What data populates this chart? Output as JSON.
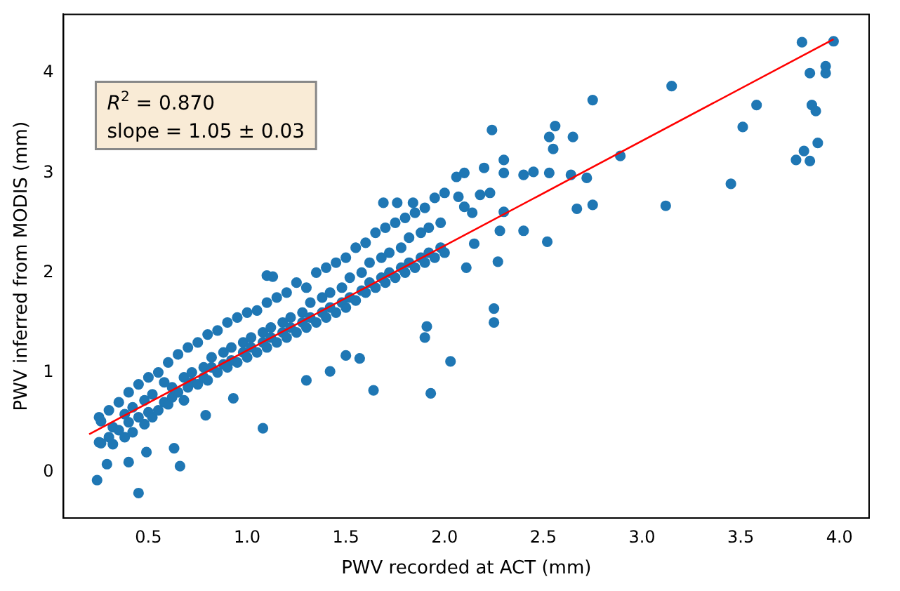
{
  "chart_data": {
    "type": "scatter",
    "xlabel": "PWV recorded at ACT (mm)",
    "ylabel": "PWV inferred from MODIS (mm)",
    "xlim": [
      0.07,
      4.15
    ],
    "ylim": [
      -0.46,
      4.59
    ],
    "xticks": [
      {
        "value": 0.5,
        "label": "0.5"
      },
      {
        "value": 1,
        "label": "1.0"
      },
      {
        "value": 1.5,
        "label": "1.5"
      },
      {
        "value": 2,
        "label": "2.0"
      },
      {
        "value": 2.5,
        "label": "2.5"
      },
      {
        "value": 3,
        "label": "3.0"
      },
      {
        "value": 3.5,
        "label": "3.5"
      },
      {
        "value": 4,
        "label": "4.0"
      }
    ],
    "yticks": [
      0,
      1,
      2,
      3,
      4
    ],
    "annotations": [
      "R$^{2}$ = 0.870",
      "slope = 1.05 ± 0.03"
    ],
    "series": [
      {
        "marker": "circle",
        "color": "#1f77b4",
        "x": [
          0.25,
          0.25,
          0.3,
          0.3,
          0.32,
          0.32,
          0.35,
          0.35,
          0.38,
          0.38,
          0.4,
          0.4,
          0.42,
          0.42,
          0.45,
          0.45,
          0.48,
          0.48,
          0.5,
          0.5,
          0.52,
          0.52,
          0.55,
          0.55,
          0.58,
          0.58,
          0.6,
          0.6,
          0.62,
          0.62,
          0.65,
          0.65,
          0.68,
          0.68,
          0.7,
          0.7,
          0.72,
          0.72,
          0.75,
          0.75,
          0.78,
          0.78,
          0.8,
          0.8,
          0.82,
          0.82,
          0.85,
          0.85,
          0.88,
          0.88,
          0.9,
          0.9,
          0.92,
          0.92,
          0.95,
          0.95,
          0.98,
          0.98,
          1.0,
          1.0,
          1.02,
          1.02,
          1.05,
          1.05,
          1.08,
          1.08,
          1.1,
          1.1,
          1.12,
          1.12,
          1.15,
          1.15,
          1.18,
          1.18,
          1.2,
          1.2,
          1.22,
          1.22,
          1.25,
          1.25,
          1.28,
          1.28,
          1.3,
          1.3,
          1.32,
          1.32,
          1.35,
          1.35,
          1.38,
          1.38,
          1.4,
          1.4,
          1.42,
          1.42,
          1.45,
          1.45,
          1.48,
          1.48,
          1.5,
          1.5,
          1.52,
          1.52,
          1.55,
          1.55,
          1.58,
          1.58,
          1.6,
          1.6,
          1.62,
          1.62,
          1.65,
          1.65,
          1.68,
          1.68,
          1.7,
          1.7,
          1.72,
          1.72,
          1.75,
          1.75,
          1.78,
          1.78,
          1.8,
          1.8,
          1.82,
          1.82,
          1.85,
          1.85,
          1.88,
          1.88,
          1.9,
          1.9,
          1.92,
          1.92,
          1.95,
          1.95,
          1.98,
          1.98,
          2.0,
          2.0,
          0.45,
          0.24,
          0.66,
          0.29,
          1.08,
          1.64,
          1.93,
          2.03,
          1.9,
          1.91,
          1.57,
          1.5,
          1.42,
          1.3,
          1.13,
          1.1,
          1.69,
          1.76,
          1.84,
          2.06,
          2.1,
          0.93,
          0.79,
          0.4,
          0.63,
          0.49,
          0.26,
          0.26,
          3.81,
          3.97,
          3.85,
          3.93,
          3.93,
          3.86,
          3.88,
          3.89,
          3.82,
          3.78,
          3.85,
          3.58,
          3.51,
          3.45,
          3.15,
          3.12,
          2.89,
          2.75,
          2.75,
          2.67,
          2.72,
          2.64,
          2.56,
          2.53,
          2.65,
          2.55,
          2.53,
          2.45,
          2.4,
          2.52,
          2.4,
          2.24,
          2.3,
          2.3,
          2.3,
          2.28,
          2.27,
          2.25,
          2.25,
          2.11,
          2.15,
          2.2,
          2.23,
          2.18,
          2.14,
          2.1,
          2.07
        ],
        "values": [
          0.55,
          0.3,
          0.62,
          0.35,
          0.45,
          0.28,
          0.7,
          0.42,
          0.58,
          0.35,
          0.8,
          0.5,
          0.65,
          0.4,
          0.88,
          0.55,
          0.72,
          0.48,
          0.95,
          0.6,
          0.78,
          0.55,
          1.0,
          0.62,
          0.9,
          0.7,
          1.1,
          0.68,
          0.85,
          0.75,
          1.18,
          0.8,
          0.95,
          0.72,
          1.25,
          0.85,
          1.0,
          0.9,
          1.3,
          0.88,
          1.05,
          0.95,
          1.38,
          0.92,
          1.15,
          1.05,
          1.42,
          1.0,
          1.2,
          1.08,
          1.5,
          1.05,
          1.25,
          1.12,
          1.55,
          1.1,
          1.3,
          1.2,
          1.6,
          1.15,
          1.35,
          1.25,
          1.62,
          1.2,
          1.4,
          1.3,
          1.7,
          1.25,
          1.45,
          1.35,
          1.75,
          1.3,
          1.5,
          1.4,
          1.8,
          1.35,
          1.55,
          1.45,
          1.9,
          1.4,
          1.6,
          1.5,
          1.85,
          1.45,
          1.7,
          1.55,
          2.0,
          1.5,
          1.75,
          1.6,
          2.05,
          1.55,
          1.8,
          1.65,
          2.1,
          1.6,
          1.85,
          1.7,
          2.15,
          1.65,
          1.95,
          1.75,
          2.25,
          1.72,
          2.0,
          1.82,
          2.3,
          1.8,
          2.1,
          1.9,
          2.4,
          1.85,
          2.15,
          1.95,
          2.45,
          1.9,
          2.2,
          2.0,
          2.5,
          1.95,
          2.25,
          2.05,
          2.55,
          2.0,
          2.35,
          2.1,
          2.6,
          2.05,
          2.4,
          2.15,
          2.65,
          2.1,
          2.45,
          2.2,
          2.75,
          2.15,
          2.5,
          2.25,
          2.8,
          2.2,
          -0.21,
          -0.08,
          0.06,
          0.08,
          0.44,
          0.82,
          0.79,
          1.11,
          1.35,
          1.46,
          1.14,
          1.17,
          1.01,
          0.92,
          1.96,
          1.97,
          2.7,
          2.7,
          2.7,
          2.96,
          3.0,
          0.74,
          0.57,
          0.1,
          0.24,
          0.2,
          0.29,
          0.51,
          4.31,
          4.32,
          4.0,
          4.07,
          4.0,
          3.68,
          3.62,
          3.3,
          3.22,
          3.13,
          3.12,
          3.68,
          3.46,
          2.89,
          3.87,
          2.67,
          3.17,
          3.73,
          2.68,
          2.64,
          2.95,
          2.98,
          3.47,
          3.36,
          3.36,
          3.24,
          3.0,
          3.01,
          2.98,
          2.31,
          2.42,
          3.43,
          3.13,
          3.0,
          2.61,
          2.42,
          2.11,
          1.64,
          1.5,
          2.05,
          2.29,
          3.05,
          2.8,
          2.78,
          2.6,
          2.66,
          2.76
        ]
      },
      {
        "type": "line",
        "color": "#ff0000",
        "x": [
          0.2,
          3.97
        ],
        "values": [
          0.38,
          4.34
        ]
      }
    ]
  }
}
